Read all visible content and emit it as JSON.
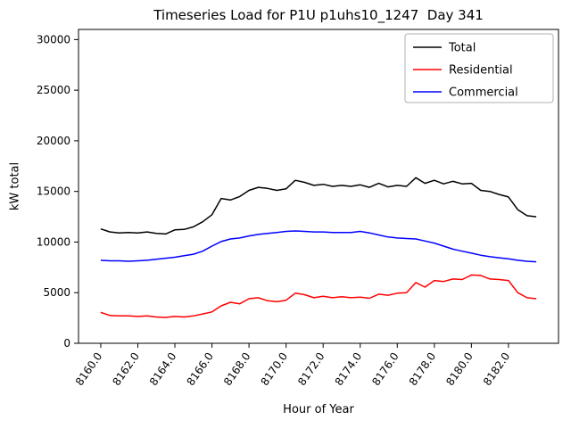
{
  "chart_data": {
    "type": "line",
    "title": "Timeseries Load for P1U p1uhs10_1247  Day 341",
    "xlabel": "Hour of Year",
    "ylabel": "kW total",
    "xlim": [
      8158.8,
      8184.7
    ],
    "ylim": [
      0,
      31000
    ],
    "grid": false,
    "background": "#ffffff",
    "xticks": {
      "values": [
        8160,
        8162,
        8164,
        8166,
        8168,
        8170,
        8172,
        8174,
        8176,
        8178,
        8180,
        8182
      ],
      "labels": [
        "8160.0",
        "8162.0",
        "8164.0",
        "8166.0",
        "8168.0",
        "8170.0",
        "8172.0",
        "8174.0",
        "8176.0",
        "8178.0",
        "8180.0",
        "8182.0"
      ]
    },
    "yticks": {
      "values": [
        0,
        5000,
        10000,
        15000,
        20000,
        25000,
        30000
      ],
      "labels": [
        "0",
        "5000",
        "10000",
        "15000",
        "20000",
        "25000",
        "30000"
      ]
    },
    "legend": {
      "position": "upper right",
      "entries": [
        "Total",
        "Residential",
        "Commercial"
      ]
    },
    "x": [
      8160.0,
      8160.5,
      8161.0,
      8161.5,
      8162.0,
      8162.5,
      8163.0,
      8163.5,
      8164.0,
      8164.5,
      8165.0,
      8165.5,
      8166.0,
      8166.5,
      8167.0,
      8167.5,
      8168.0,
      8168.5,
      8169.0,
      8169.5,
      8170.0,
      8170.5,
      8171.0,
      8171.5,
      8172.0,
      8172.5,
      8173.0,
      8173.5,
      8174.0,
      8174.5,
      8175.0,
      8175.5,
      8176.0,
      8176.5,
      8177.0,
      8177.5,
      8178.0,
      8178.5,
      8179.0,
      8179.5,
      8180.0,
      8180.5,
      8181.0,
      8181.5,
      8182.0,
      8182.5,
      8183.0,
      8183.5
    ],
    "series": [
      {
        "name": "Total",
        "color": "#000000",
        "values": [
          11300,
          11000,
          10900,
          10950,
          10900,
          11000,
          10850,
          10800,
          11200,
          11250,
          11500,
          12000,
          12700,
          14300,
          14150,
          14500,
          15100,
          15400,
          15300,
          15100,
          15250,
          16100,
          15900,
          15600,
          15700,
          15500,
          15600,
          15500,
          15650,
          15400,
          15800,
          15450,
          15600,
          15500,
          16350,
          15800,
          16100,
          15750,
          16000,
          15750,
          15800,
          15100,
          15000,
          14700,
          14450,
          13200,
          12600,
          12500
        ]
      },
      {
        "name": "Residential",
        "color": "#ff0000",
        "values": [
          3050,
          2750,
          2700,
          2700,
          2650,
          2700,
          2600,
          2550,
          2650,
          2600,
          2700,
          2900,
          3100,
          3700,
          4050,
          3900,
          4400,
          4500,
          4200,
          4100,
          4250,
          4950,
          4800,
          4500,
          4650,
          4500,
          4600,
          4500,
          4550,
          4450,
          4850,
          4750,
          4950,
          5000,
          6000,
          5550,
          6200,
          6100,
          6350,
          6300,
          6750,
          6700,
          6350,
          6300,
          6200,
          5000,
          4500,
          4400
        ]
      },
      {
        "name": "Commercial",
        "color": "#0000ff",
        "values": [
          8200,
          8150,
          8150,
          8100,
          8150,
          8200,
          8300,
          8400,
          8500,
          8650,
          8800,
          9100,
          9600,
          10050,
          10300,
          10400,
          10600,
          10750,
          10850,
          10950,
          11050,
          11100,
          11050,
          11000,
          11000,
          10950,
          10950,
          10950,
          11050,
          10900,
          10700,
          10500,
          10400,
          10350,
          10300,
          10100,
          9900,
          9600,
          9300,
          9100,
          8900,
          8700,
          8550,
          8450,
          8350,
          8200,
          8100,
          8050
        ]
      }
    ]
  }
}
